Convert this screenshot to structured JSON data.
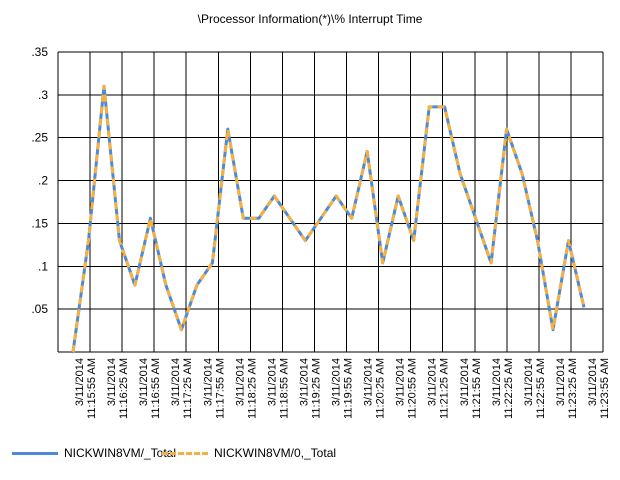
{
  "chart_data": {
    "type": "line",
    "title": "\\Processor Information(*)\\% Interrupt Time",
    "ylim": [
      0,
      0.35
    ],
    "yticks": [
      ".05",
      ".1",
      ".15",
      ".2",
      ".25",
      ".3",
      ".35"
    ],
    "ytick_values": [
      0.05,
      0.1,
      0.15,
      0.2,
      0.25,
      0.3,
      0.35
    ],
    "grid": true,
    "legend_position": "bottom-left",
    "x_tick_labels": [
      "3/11/2014 11:15:55 AM",
      "3/11/2014 11:16:25 AM",
      "3/11/2014 11:16:55 AM",
      "3/11/2014 11:17:25 AM",
      "3/11/2014 11:17:55 AM",
      "3/11/2014 11:18:25 AM",
      "3/11/2014 11:18:55 AM",
      "3/11/2014 11:19:25 AM",
      "3/11/2014 11:19:55 AM",
      "3/11/2014 11:20:25 AM",
      "3/11/2014 11:20:55 AM",
      "3/11/2014 11:21:25 AM",
      "3/11/2014 11:21:55 AM",
      "3/11/2014 11:22:25 AM",
      "3/11/2014 11:22:55 AM",
      "3/11/2014 11:23:25 AM",
      "3/11/2014 11:23:55 AM"
    ],
    "values": [
      0,
      0.13,
      0.31,
      0.13,
      0.078,
      0.156,
      0.078,
      0.026,
      0.078,
      0.104,
      0.26,
      0.156,
      0.156,
      0.182,
      0.156,
      0.13,
      0.156,
      0.182,
      0.156,
      0.234,
      0.104,
      0.182,
      0.13,
      0.286,
      0.286,
      0.208,
      0.156,
      0.104,
      0.26,
      0.208,
      0.13,
      0.026,
      0.13,
      0.052
    ],
    "series": [
      {
        "name": "NICKWIN8VM/_Total",
        "color": "#4a8ad8",
        "style": "solid"
      },
      {
        "name": "NICKWIN8VM/0,_Total",
        "color": "#f5b041",
        "style": "dashed"
      }
    ]
  }
}
